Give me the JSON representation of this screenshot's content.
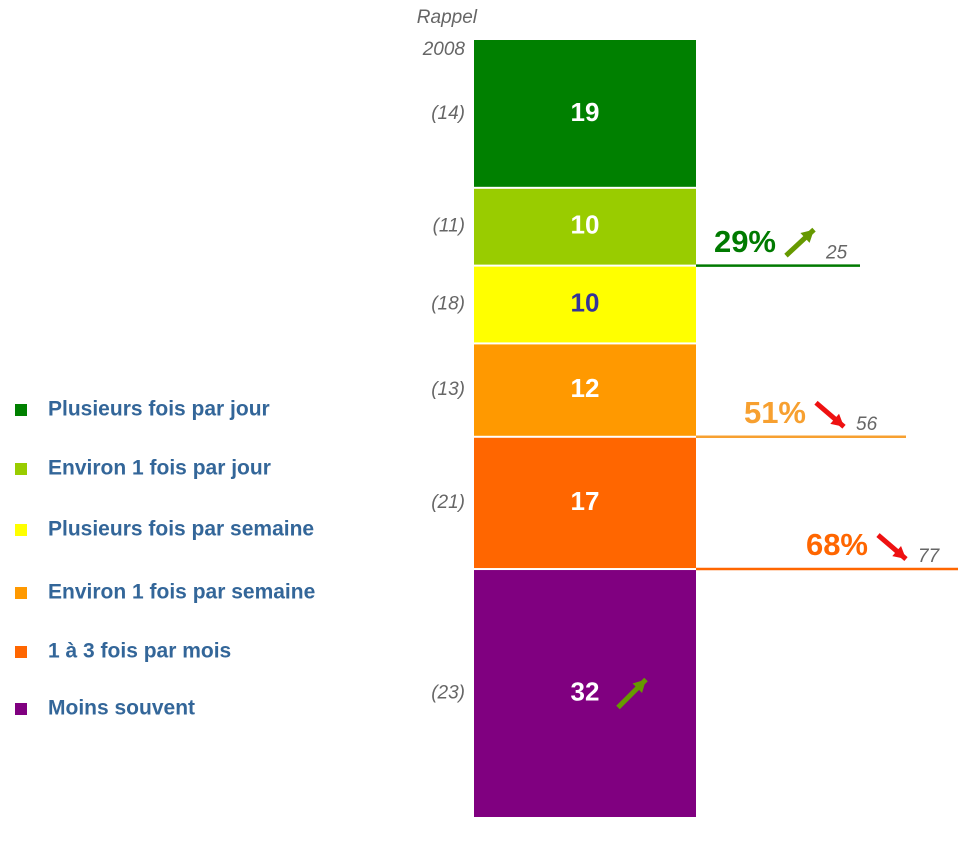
{
  "chart_data": {
    "type": "bar",
    "stacked": true,
    "recall_title": [
      "Rappel",
      "2008"
    ],
    "ylim": [
      0,
      100
    ],
    "series": [
      {
        "name": "Plusieurs fois par jour",
        "color": "#008000",
        "label_color": "#ffffff",
        "values": [
          19
        ],
        "recall": 14,
        "recall_label": "(14)"
      },
      {
        "name": "Environ 1 fois par jour",
        "color": "#99cc00",
        "label_color": "#ffffff",
        "values": [
          10
        ],
        "recall": 11,
        "recall_label": "(11)"
      },
      {
        "name": "Plusieurs fois par semaine",
        "color": "#ffff00",
        "label_color": "#333399",
        "values": [
          10
        ],
        "recall": 18,
        "recall_label": "(18)"
      },
      {
        "name": "Environ 1 fois par semaine",
        "color": "#ff9900",
        "label_color": "#ffffff",
        "values": [
          12
        ],
        "recall": 13,
        "recall_label": "(13)"
      },
      {
        "name": "1 à 3 fois par mois",
        "color": "#ff6600",
        "label_color": "#ffffff",
        "values": [
          17
        ],
        "recall": 21,
        "recall_label": "(21)"
      },
      {
        "name": "Moins souvent",
        "color": "#800080",
        "label_color": "#ffffff",
        "values": [
          32
        ],
        "recall": 23,
        "recall_label": "(23)",
        "trend": "up"
      }
    ],
    "annotations": [
      {
        "value": 29,
        "label": "29%",
        "previous": 25,
        "color": "#007a00",
        "trend": "up"
      },
      {
        "value": 51,
        "label": "51%",
        "previous": 56,
        "color": "#f7a030",
        "trend": "down"
      },
      {
        "value": 68,
        "label": "68%",
        "previous": 77,
        "color": "#ff6600",
        "trend": "down"
      }
    ]
  }
}
